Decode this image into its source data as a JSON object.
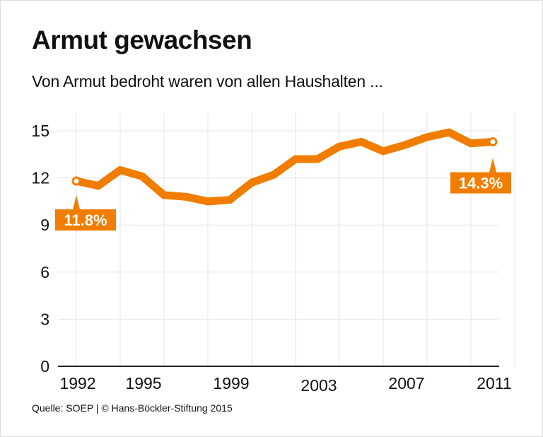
{
  "title": "Armut gewachsen",
  "subtitle": "Von Armut bedroht waren von allen Haushalten ...",
  "source": "Quelle: SOEP | © Hans-Böckler-Stiftung 2015",
  "colors": {
    "line": "#f07d00",
    "grid": "#e6e6e6",
    "axis": "#222222"
  },
  "chart_data": {
    "type": "line",
    "title": "Armut gewachsen",
    "subtitle": "Von Armut bedroht waren von allen Haushalten ...",
    "xlabel": "",
    "ylabel": "",
    "ylim": [
      0,
      15
    ],
    "xlim": [
      1992,
      2011
    ],
    "grid": true,
    "yticks": [
      "0",
      "3",
      "6",
      "9",
      "12",
      "15"
    ],
    "xticks": [
      "1992",
      "1995",
      "1999",
      "2003",
      "2007",
      "2011"
    ],
    "x": [
      1992,
      1993,
      1994,
      1995,
      1996,
      1997,
      1998,
      1999,
      2000,
      2001,
      2002,
      2003,
      2004,
      2005,
      2006,
      2007,
      2008,
      2009,
      2010,
      2011
    ],
    "series": [
      {
        "values": [
          11.8,
          11.5,
          12.5,
          12.1,
          10.9,
          10.8,
          10.5,
          10.6,
          11.7,
          12.2,
          13.2,
          13.2,
          14.0,
          14.3,
          13.7,
          14.1,
          14.6,
          14.9,
          14.2,
          14.3
        ]
      }
    ],
    "annotations": [
      {
        "x": 1992,
        "text": "11.8%"
      },
      {
        "x": 2011,
        "text": "14.3%"
      }
    ]
  }
}
